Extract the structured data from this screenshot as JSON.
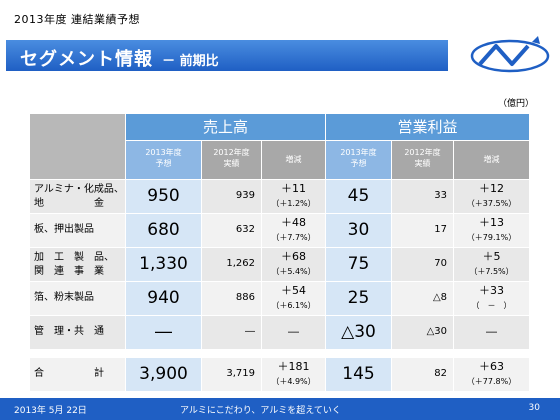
{
  "header": {
    "subtitle": "2013年度 連結業績予想",
    "title": "セグメント情報",
    "title_suffix": "－ 前期比"
  },
  "unit": "（億円）",
  "table": {
    "group_sales": "売上高",
    "group_profit": "営業利益",
    "sub": {
      "forecast_a": "2013年度",
      "forecast_b": "予想",
      "actual_a": "2012年度",
      "actual_b": "実績",
      "change": "増減"
    },
    "rows": [
      {
        "label": [
          "アルミナ・化成品、",
          "地　　　　　金"
        ],
        "s_fc": "950",
        "s_ac": "939",
        "s_ch": "＋11",
        "s_pct": "（＋1.2%）",
        "p_fc": "45",
        "p_ac": "33",
        "p_ch": "＋12",
        "p_pct": "（＋37.5%）"
      },
      {
        "label": [
          "板、押出製品"
        ],
        "s_fc": "680",
        "s_ac": "632",
        "s_ch": "＋48",
        "s_pct": "（＋7.7%）",
        "p_fc": "30",
        "p_ac": "17",
        "p_ch": "＋13",
        "p_pct": "（＋79.1%）"
      },
      {
        "label": [
          "加　工　製　品、",
          "関　連　事　業"
        ],
        "s_fc": "1,330",
        "s_ac": "1,262",
        "s_ch": "＋68",
        "s_pct": "（＋5.4%）",
        "p_fc": "75",
        "p_ac": "70",
        "p_ch": "＋5",
        "p_pct": "（＋7.5%）"
      },
      {
        "label": [
          "箔、粉末製品"
        ],
        "s_fc": "940",
        "s_ac": "886",
        "s_ch": "＋54",
        "s_pct": "（＋6.1%）",
        "p_fc": "25",
        "p_ac": "△8",
        "p_ch": "＋33",
        "p_pct": "（　－　）"
      },
      {
        "label": [
          "管　理・共　通"
        ],
        "s_fc": "―",
        "s_ac": "―",
        "s_ch": "―",
        "s_pct": "",
        "p_fc": "△30",
        "p_ac": "△30",
        "p_ch": "―",
        "p_pct": ""
      },
      {
        "label": [
          "合　　　　　計"
        ],
        "s_fc": "3,900",
        "s_ac": "3,719",
        "s_ch": "＋181",
        "s_pct": "（＋4.9%）",
        "p_fc": "145",
        "p_ac": "82",
        "p_ch": "＋63",
        "p_pct": "（＋77.8%）"
      }
    ]
  },
  "footer": {
    "date": "2013年 5月 22日",
    "slogan": "アルミにこだわり、アルミを超えていく",
    "page": "30"
  },
  "colors": {
    "accent": "#1f5fc4",
    "header_blue": "#5b9bd8",
    "cell_blue": "#d6e6f6"
  }
}
